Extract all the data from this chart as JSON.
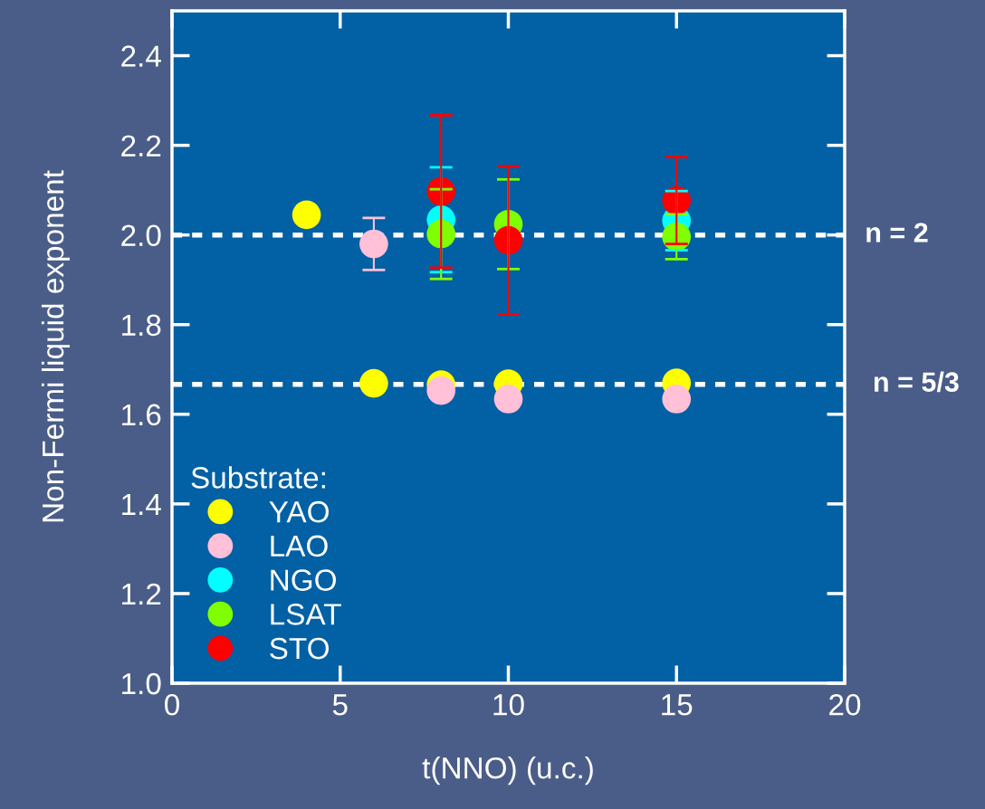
{
  "chart_data": {
    "type": "scatter",
    "xlabel": "t(NNO) (u.c.)",
    "ylabel": "Non-Fermi liquid exponent",
    "xlim": [
      0,
      20
    ],
    "xticks": [
      0,
      5,
      10,
      15,
      20
    ],
    "ylim": [
      1.0,
      2.5
    ],
    "yticks": [
      {
        "value": 1.0,
        "label": "1.0"
      },
      1.2,
      1.4,
      1.6,
      1.8,
      {
        "value": 2.0,
        "label": "2.0"
      },
      2.2,
      2.4
    ],
    "legend": "bottom left",
    "legend_title": "Substrate:",
    "marker": "circle",
    "grid": false,
    "series": [
      {
        "name": "YAO",
        "color": "#ffff00",
        "x": [
          4,
          6,
          8,
          10,
          15
        ],
        "values": [
          2.045,
          1.669,
          1.666,
          1.668,
          1.67
        ],
        "errors": [
          null,
          null,
          null,
          null,
          null
        ]
      },
      {
        "name": "LAO",
        "color": "#ffc0d8",
        "x": [
          6,
          8,
          10,
          15
        ],
        "values": [
          1.98,
          1.653,
          1.634,
          1.634
        ],
        "errors": [
          0.058,
          null,
          null,
          null
        ]
      },
      {
        "name": "NGO",
        "color": "#00ffff",
        "x": [
          8,
          10,
          15
        ],
        "values": [
          2.034,
          null,
          2.032
        ],
        "errors": [
          0.117,
          null,
          0.066
        ]
      },
      {
        "name": "LSAT",
        "color": "#80ff00",
        "x": [
          8,
          10,
          15
        ],
        "values": [
          2.002,
          2.024,
          1.996
        ],
        "errors": [
          0.1,
          0.1,
          0.05
        ]
      },
      {
        "name": "STO",
        "color": "#ff0000",
        "x": [
          8,
          10,
          15
        ],
        "values": [
          2.097,
          1.988,
          2.077
        ],
        "errors": [
          0.17,
          0.165,
          0.097
        ]
      }
    ],
    "ref_lines": [
      {
        "axis": "y",
        "value": 2.0,
        "label": "n = 2",
        "color": "#ffffff",
        "line_style": "dotted"
      },
      {
        "axis": "y",
        "value": 1.6666666666666667,
        "color": "#ffffff",
        "line_style": "dotted"
      }
    ],
    "annotations": [
      {
        "text": "n = 5/3",
        "x": 20,
        "y": 1.6666666666666667
      }
    ]
  }
}
